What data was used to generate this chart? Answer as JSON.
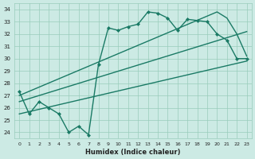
{
  "title": "",
  "xlabel": "Humidex (Indice chaleur)",
  "ylabel": "",
  "bg_color": "#cceae4",
  "grid_color": "#99ccbb",
  "line_color": "#1a7a65",
  "xlim": [
    -0.5,
    23.5
  ],
  "ylim": [
    23.5,
    34.5
  ],
  "yticks": [
    24,
    25,
    26,
    27,
    28,
    29,
    30,
    31,
    32,
    33,
    34
  ],
  "xticks": [
    0,
    1,
    2,
    3,
    4,
    5,
    6,
    7,
    8,
    9,
    10,
    11,
    12,
    13,
    14,
    15,
    16,
    17,
    18,
    19,
    20,
    21,
    22,
    23
  ],
  "series": [
    {
      "x": [
        0,
        1,
        2,
        3,
        4,
        5,
        6,
        7,
        8,
        9,
        10,
        11,
        12,
        13,
        14,
        15,
        16,
        17,
        18,
        19,
        20,
        21,
        22,
        23
      ],
      "y": [
        27.3,
        25.5,
        26.5,
        26.0,
        25.5,
        24.0,
        24.5,
        23.8,
        29.5,
        32.5,
        32.3,
        32.6,
        32.8,
        33.8,
        33.7,
        33.3,
        32.3,
        33.2,
        33.1,
        33.0,
        32.0,
        31.5,
        30.0,
        30.0
      ],
      "marker": "D",
      "markersize": 2.0,
      "linewidth": 1.0
    },
    {
      "x": [
        0,
        20,
        21,
        22,
        23
      ],
      "y": [
        27.0,
        33.8,
        33.3,
        32.0,
        30.2
      ],
      "marker": null,
      "markersize": 0,
      "linewidth": 1.0
    },
    {
      "x": [
        0,
        23
      ],
      "y": [
        26.5,
        32.2
      ],
      "marker": null,
      "markersize": 0,
      "linewidth": 1.0
    },
    {
      "x": [
        0,
        23
      ],
      "y": [
        25.5,
        29.8
      ],
      "marker": null,
      "markersize": 0,
      "linewidth": 1.0
    }
  ]
}
